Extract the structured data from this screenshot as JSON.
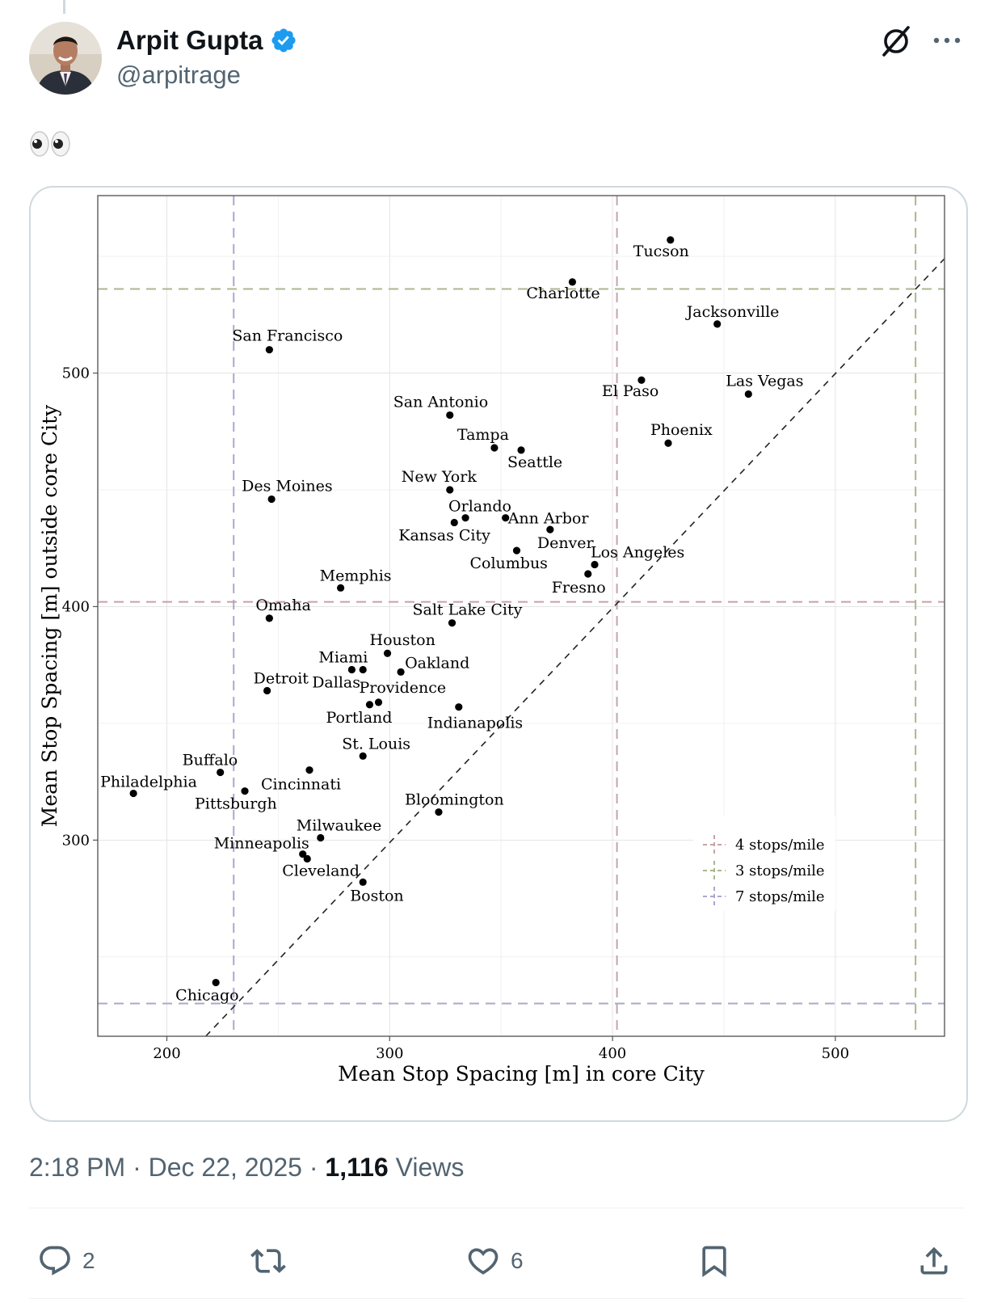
{
  "author": {
    "display_name": "Arpit Gupta",
    "handle": "@arpitrage",
    "verified": true
  },
  "tweet": {
    "text": "👀"
  },
  "meta": {
    "time": "2:18 PM",
    "sep1": " · ",
    "date": "Dec 22, 2025",
    "sep2": " · ",
    "views_count": "1,116",
    "views_label": " Views"
  },
  "actions": {
    "reply_count": "2",
    "like_count": "6"
  },
  "icons": [
    "verified-badge-icon",
    "grok-icon",
    "more-icon",
    "reply-icon",
    "retweet-icon",
    "like-icon",
    "bookmark-icon",
    "share-icon"
  ],
  "colors": {
    "verified": "#1d9bf0",
    "text_secondary": "#536471"
  },
  "chart_data": {
    "type": "scatter",
    "xlabel": "Mean Stop Spacing [m] in core City",
    "ylabel": "Mean Stop Spacing [m] outside core City",
    "xlim": [
      169,
      549
    ],
    "ylim": [
      216,
      576
    ],
    "xticks": [
      "200",
      "300",
      "400",
      "500"
    ],
    "yticks": [
      "300",
      "400",
      "500"
    ],
    "grid": true,
    "diagonal": "y = x",
    "points": [
      {
        "name": "Tucson",
        "x": 426,
        "y": 557
      },
      {
        "name": "Charlotte",
        "x": 382,
        "y": 539
      },
      {
        "name": "Jacksonville",
        "x": 447,
        "y": 521
      },
      {
        "name": "San Francisco",
        "x": 246,
        "y": 510
      },
      {
        "name": "El Paso",
        "x": 413,
        "y": 497
      },
      {
        "name": "Las Vegas",
        "x": 461,
        "y": 491
      },
      {
        "name": "San Antonio",
        "x": 327,
        "y": 482
      },
      {
        "name": "Phoenix",
        "x": 425,
        "y": 470
      },
      {
        "name": "Tampa",
        "x": 347,
        "y": 468
      },
      {
        "name": "Seattle",
        "x": 359,
        "y": 467
      },
      {
        "name": "New York",
        "x": 327,
        "y": 450
      },
      {
        "name": "Des Moines",
        "x": 247,
        "y": 446
      },
      {
        "name": "Ann Arbor",
        "x": 352,
        "y": 438
      },
      {
        "name": "Orlando",
        "x": 334,
        "y": 438
      },
      {
        "name": "Kansas City",
        "x": 329,
        "y": 436
      },
      {
        "name": "Denver",
        "x": 372,
        "y": 433
      },
      {
        "name": "Columbus",
        "x": 357,
        "y": 424
      },
      {
        "name": "Los Angeles",
        "x": 392,
        "y": 418
      },
      {
        "name": "Fresno",
        "x": 389,
        "y": 414
      },
      {
        "name": "Memphis",
        "x": 278,
        "y": 408
      },
      {
        "name": "Omaha",
        "x": 246,
        "y": 395
      },
      {
        "name": "Salt Lake City",
        "x": 328,
        "y": 393
      },
      {
        "name": "Houston",
        "x": 299,
        "y": 380
      },
      {
        "name": "Miami",
        "x": 283,
        "y": 373
      },
      {
        "name": "Dallas",
        "x": 288,
        "y": 373
      },
      {
        "name": "Oakland",
        "x": 305,
        "y": 372
      },
      {
        "name": "Detroit",
        "x": 245,
        "y": 364
      },
      {
        "name": "Providence",
        "x": 295,
        "y": 359
      },
      {
        "name": "Portland",
        "x": 291,
        "y": 358
      },
      {
        "name": "Indianapolis",
        "x": 331,
        "y": 357
      },
      {
        "name": "St. Louis",
        "x": 288,
        "y": 336
      },
      {
        "name": "Cincinnati",
        "x": 264,
        "y": 330
      },
      {
        "name": "Buffalo",
        "x": 224,
        "y": 329
      },
      {
        "name": "Pittsburgh",
        "x": 235,
        "y": 321
      },
      {
        "name": "Philadelphia",
        "x": 185,
        "y": 320
      },
      {
        "name": "Bloomington",
        "x": 322,
        "y": 312
      },
      {
        "name": "Milwaukee",
        "x": 269,
        "y": 301
      },
      {
        "name": "Minneapolis",
        "x": 261,
        "y": 294
      },
      {
        "name": "Cleveland",
        "x": 263,
        "y": 292
      },
      {
        "name": "Boston",
        "x": 288,
        "y": 282
      },
      {
        "name": "Chicago",
        "x": 222,
        "y": 239
      }
    ],
    "reference_lines": [
      {
        "name": "4 stops/mile",
        "value": 402,
        "color": "#c4a4a8"
      },
      {
        "name": "3 stops/mile",
        "value": 536,
        "color": "#a8b88e"
      },
      {
        "name": "7 stops/mile",
        "value": 230,
        "color": "#aaa8cc"
      }
    ],
    "legend": [
      "4 stops/mile",
      "3 stops/mile",
      "7 stops/mile"
    ],
    "legend_position": "bottom-right"
  }
}
